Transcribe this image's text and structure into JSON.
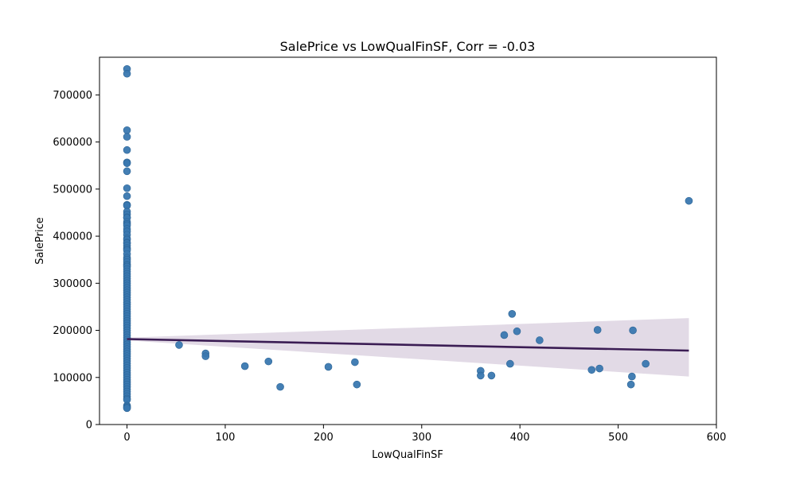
{
  "chart_data": {
    "type": "scatter",
    "title": "SalePrice vs LowQualFinSF, Corr = -0.03",
    "xlabel": "LowQualFinSF",
    "ylabel": "SalePrice",
    "xlim": [
      -28,
      600
    ],
    "ylim": [
      0,
      780000
    ],
    "xticks": [
      0,
      100,
      200,
      300,
      400,
      500,
      600
    ],
    "yticks": [
      0,
      100000,
      200000,
      300000,
      400000,
      500000,
      600000,
      700000
    ],
    "grid": false,
    "point_color": "#3a78b0",
    "line_color": "#3b1d54",
    "band_color": "#e2dae6",
    "regression": {
      "x": [
        0,
        572
      ],
      "y": [
        181500,
        157000
      ]
    },
    "ci_band": {
      "x": [
        0,
        572
      ],
      "upper": [
        184500,
        226000
      ],
      "lower": [
        178500,
        102000
      ]
    },
    "zero_x_values": [
      755000,
      745000,
      625000,
      611000,
      582933,
      556581,
      555000,
      538000,
      501837,
      485000,
      466500,
      465000,
      451950,
      446261,
      440000,
      438780,
      430000,
      426000,
      423000,
      415298,
      410000,
      402861,
      395000,
      392500,
      386250,
      385000,
      380000,
      375000,
      372500,
      369900,
      361919,
      354000,
      350000,
      345000,
      340000,
      337500,
      335000,
      330000,
      325000,
      320000,
      315000,
      310000,
      305000,
      300000,
      295000,
      290000,
      285000,
      280000,
      275000,
      270000,
      265000,
      260000,
      255000,
      250000,
      245000,
      240000,
      235000,
      230000,
      225000,
      220000,
      215000,
      210000,
      205000,
      200000,
      195000,
      190000,
      185000,
      180000,
      175000,
      170000,
      165000,
      160000,
      155000,
      150000,
      145000,
      140000,
      135000,
      130000,
      125000,
      120000,
      115000,
      110000,
      105000,
      100000,
      95000,
      90000,
      85000,
      80000,
      75000,
      70000,
      65000,
      60000,
      55000,
      52500,
      40000,
      37900,
      35311,
      34900
    ],
    "points": [
      {
        "x": 53,
        "y": 169000
      },
      {
        "x": 80,
        "y": 151000
      },
      {
        "x": 80,
        "y": 145000
      },
      {
        "x": 120,
        "y": 124000
      },
      {
        "x": 144,
        "y": 134000
      },
      {
        "x": 156,
        "y": 80000
      },
      {
        "x": 205,
        "y": 122500
      },
      {
        "x": 232,
        "y": 132500
      },
      {
        "x": 234,
        "y": 85000
      },
      {
        "x": 360,
        "y": 114000
      },
      {
        "x": 360,
        "y": 104000
      },
      {
        "x": 371,
        "y": 104000
      },
      {
        "x": 384,
        "y": 190000
      },
      {
        "x": 390,
        "y": 129000
      },
      {
        "x": 392,
        "y": 235000
      },
      {
        "x": 397,
        "y": 198000
      },
      {
        "x": 420,
        "y": 179000
      },
      {
        "x": 473,
        "y": 116000
      },
      {
        "x": 479,
        "y": 201000
      },
      {
        "x": 481,
        "y": 119000
      },
      {
        "x": 513,
        "y": 85000
      },
      {
        "x": 514,
        "y": 102000
      },
      {
        "x": 515,
        "y": 200000
      },
      {
        "x": 528,
        "y": 129000
      },
      {
        "x": 572,
        "y": 475000
      }
    ]
  }
}
